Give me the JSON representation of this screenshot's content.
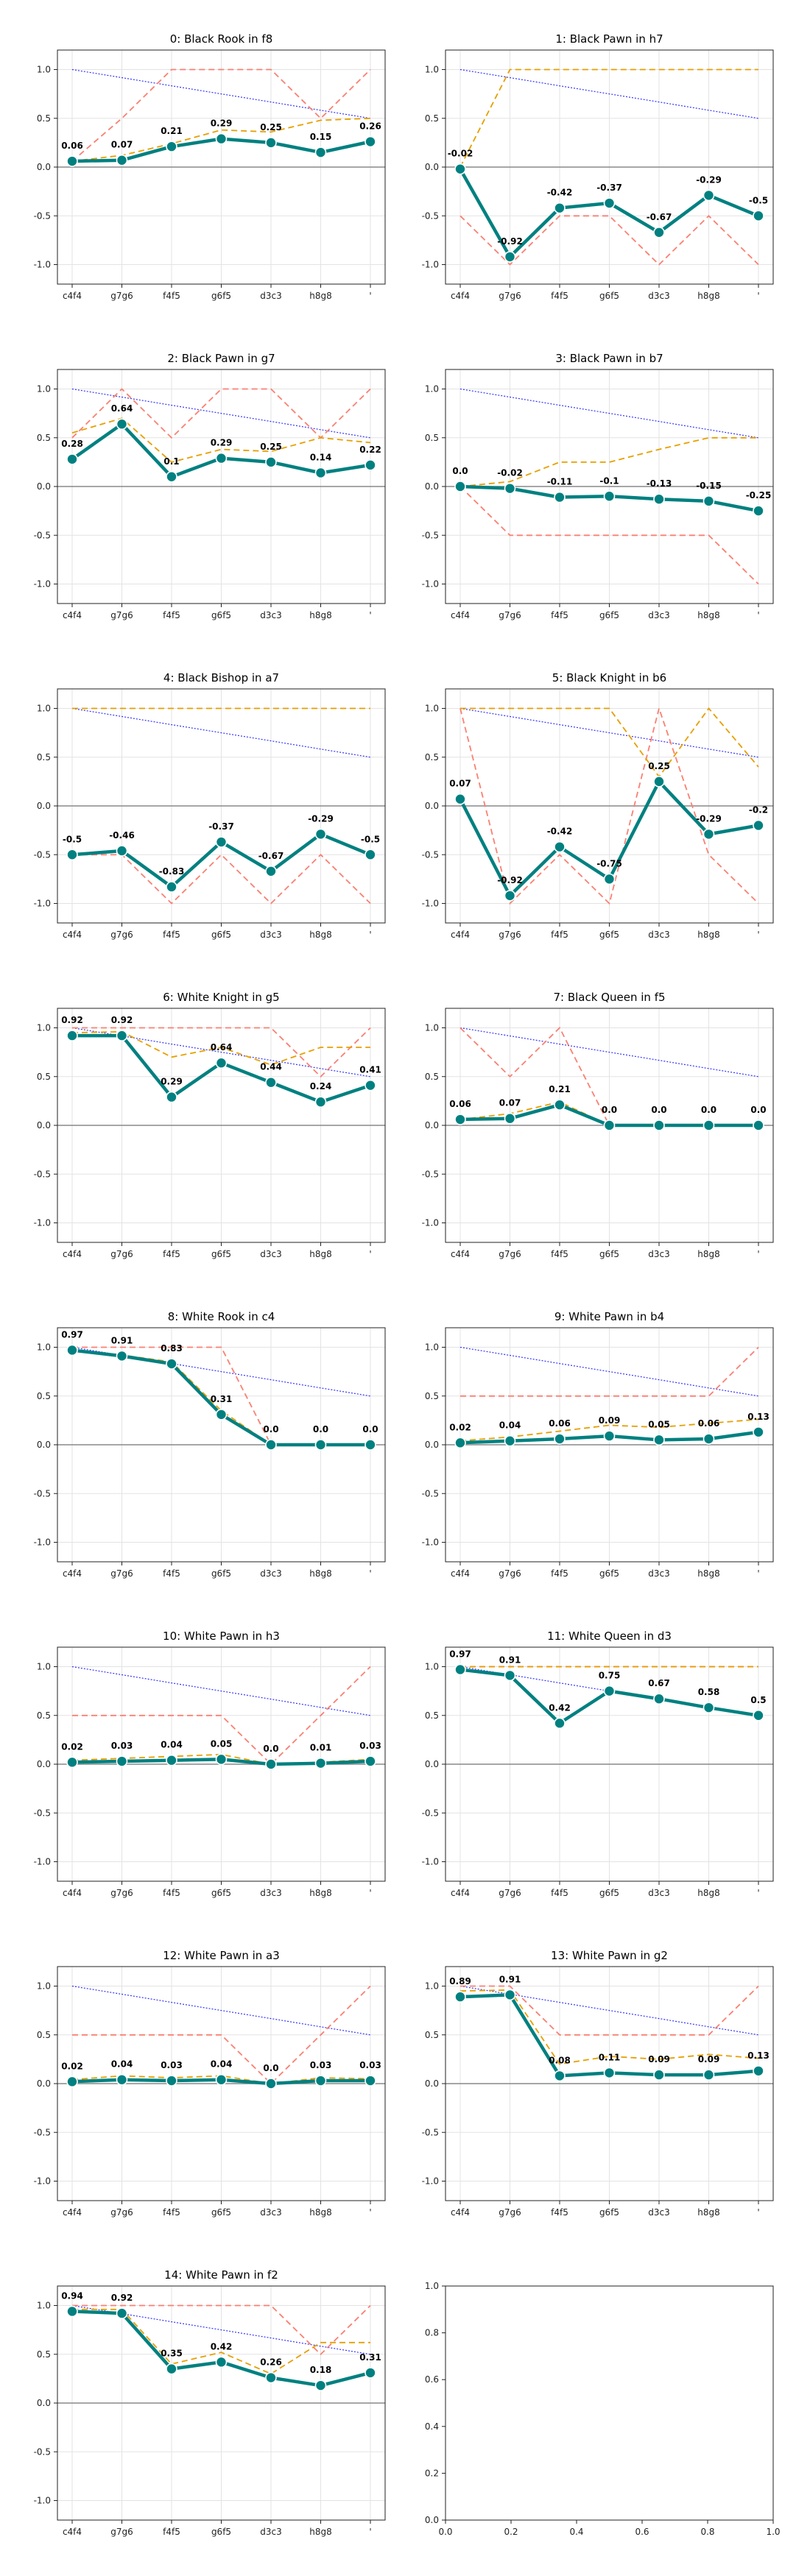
{
  "colors": {
    "main": "#008080",
    "orange": "#e69f00",
    "red": "#fa8072",
    "blue": "#0000ff",
    "zero": "#888888",
    "grid": "#e3e3e3",
    "axis": "#222222"
  },
  "x_ticks": [
    "c4f4",
    "g7g6",
    "f4f5",
    "g6f5",
    "d3c3",
    "h8g8",
    "'"
  ],
  "y_ticks": [
    "-1.0",
    "-0.5",
    "0.0",
    "0.5",
    "1.0"
  ],
  "empty_axes": {
    "x_ticks": [
      "0.0",
      "0.2",
      "0.4",
      "0.6",
      "0.8",
      "1.0"
    ],
    "y_ticks": [
      "0.0",
      "0.2",
      "0.4",
      "0.6",
      "0.8",
      "1.0"
    ]
  },
  "chart_data": [
    {
      "type": "line",
      "title": "0: Black Rook in f8",
      "ylim": [
        -1.2,
        1.2
      ],
      "main": [
        0.06,
        0.07,
        0.21,
        0.29,
        0.25,
        0.15,
        0.26
      ],
      "labels": [
        "0.06",
        "0.07",
        "0.21",
        "0.29",
        "0.25",
        "0.15",
        "0.26"
      ],
      "orange": [
        0.06,
        0.12,
        0.24,
        0.38,
        0.36,
        0.48,
        0.5
      ],
      "red": [
        0.06,
        0.5,
        1.0,
        1.0,
        1.0,
        0.5,
        1.0
      ],
      "blue": [
        1.0,
        0.917,
        0.833,
        0.75,
        0.667,
        0.583,
        0.5
      ]
    },
    {
      "type": "line",
      "title": "1: Black Pawn in h7",
      "ylim": [
        -1.2,
        1.2
      ],
      "main": [
        -0.02,
        -0.92,
        -0.42,
        -0.37,
        -0.67,
        -0.29,
        -0.5
      ],
      "labels": [
        "-0.02",
        "-0.92",
        "-0.42",
        "-0.37",
        "-0.67",
        "-0.29",
        "-0.5"
      ],
      "orange": [
        0.0,
        1.0,
        1.0,
        1.0,
        1.0,
        1.0,
        1.0
      ],
      "red": [
        -0.5,
        -1.0,
        -0.5,
        -0.5,
        -1.0,
        -0.5,
        -1.0
      ],
      "blue": [
        1.0,
        0.917,
        0.833,
        0.75,
        0.667,
        0.583,
        0.5
      ]
    },
    {
      "type": "line",
      "title": "2: Black Pawn in g7",
      "ylim": [
        -1.2,
        1.2
      ],
      "main": [
        0.28,
        0.64,
        0.1,
        0.29,
        0.25,
        0.14,
        0.22
      ],
      "labels": [
        "0.28",
        "0.64",
        "0.1",
        "0.29",
        "0.25",
        "0.14",
        "0.22"
      ],
      "orange": [
        0.55,
        0.7,
        0.25,
        0.38,
        0.36,
        0.5,
        0.45
      ],
      "red": [
        0.5,
        1.0,
        0.5,
        1.0,
        1.0,
        0.5,
        1.0
      ],
      "blue": [
        1.0,
        0.917,
        0.833,
        0.75,
        0.667,
        0.583,
        0.5
      ]
    },
    {
      "type": "line",
      "title": "3: Black Pawn in b7",
      "ylim": [
        -1.2,
        1.2
      ],
      "main": [
        0.0,
        -0.02,
        -0.11,
        -0.1,
        -0.13,
        -0.15,
        -0.25
      ],
      "labels": [
        "0.0",
        "-0.02",
        "-0.11",
        "-0.1",
        "-0.13",
        "-0.15",
        "-0.25"
      ],
      "orange": [
        0.0,
        0.05,
        0.25,
        0.25,
        0.38,
        0.5,
        0.5
      ],
      "red": [
        0.0,
        -0.5,
        -0.5,
        -0.5,
        -0.5,
        -0.5,
        -1.0
      ],
      "blue": [
        1.0,
        0.917,
        0.833,
        0.75,
        0.667,
        0.583,
        0.5
      ]
    },
    {
      "type": "line",
      "title": "4: Black Bishop in a7",
      "ylim": [
        -1.2,
        1.2
      ],
      "main": [
        -0.5,
        -0.46,
        -0.83,
        -0.37,
        -0.67,
        -0.29,
        -0.5
      ],
      "labels": [
        "-0.5",
        "-0.46",
        "-0.83",
        "-0.37",
        "-0.67",
        "-0.29",
        "-0.5"
      ],
      "orange": [
        1.0,
        1.0,
        1.0,
        1.0,
        1.0,
        1.0,
        1.0
      ],
      "red": [
        -0.5,
        -0.5,
        -1.0,
        -0.5,
        -1.0,
        -0.5,
        -1.0
      ],
      "blue": [
        1.0,
        0.917,
        0.833,
        0.75,
        0.667,
        0.583,
        0.5
      ]
    },
    {
      "type": "line",
      "title": "5: Black Knight in b6",
      "ylim": [
        -1.2,
        1.2
      ],
      "main": [
        0.07,
        -0.92,
        -0.42,
        -0.75,
        0.25,
        -0.29,
        -0.2
      ],
      "labels": [
        "0.07",
        "-0.92",
        "-0.42",
        "-0.75",
        "0.25",
        "-0.29",
        "-0.2"
      ],
      "orange": [
        1.0,
        1.0,
        1.0,
        1.0,
        0.3,
        1.0,
        0.4
      ],
      "red": [
        1.0,
        -1.0,
        -0.5,
        -1.0,
        1.0,
        -0.5,
        -1.0
      ],
      "blue": [
        1.0,
        0.917,
        0.833,
        0.75,
        0.667,
        0.583,
        0.5
      ]
    },
    {
      "type": "line",
      "title": "6: White Knight in g5",
      "ylim": [
        -1.2,
        1.2
      ],
      "main": [
        0.92,
        0.92,
        0.29,
        0.64,
        0.44,
        0.24,
        0.41
      ],
      "labels": [
        "0.92",
        "0.92",
        "0.29",
        "0.64",
        "0.44",
        "0.24",
        "0.41"
      ],
      "orange": [
        0.95,
        0.96,
        0.7,
        0.8,
        0.62,
        0.8,
        0.8
      ],
      "red": [
        1.0,
        1.0,
        1.0,
        1.0,
        1.0,
        0.5,
        1.0
      ],
      "blue": [
        1.0,
        0.917,
        0.833,
        0.75,
        0.667,
        0.583,
        0.5
      ]
    },
    {
      "type": "line",
      "title": "7: Black Queen in f5",
      "ylim": [
        -1.2,
        1.2
      ],
      "main": [
        0.06,
        0.07,
        0.21,
        0.0,
        0.0,
        0.0,
        0.0
      ],
      "labels": [
        "0.06",
        "0.07",
        "0.21",
        "0.0",
        "0.0",
        "0.0",
        "0.0"
      ],
      "orange": [
        0.06,
        0.12,
        0.24,
        0.0,
        0.0,
        0.0,
        0.0
      ],
      "red": [
        1.0,
        0.5,
        1.0,
        0.0,
        0.0,
        0.0,
        0.0
      ],
      "blue": [
        1.0,
        0.917,
        0.833,
        0.75,
        0.667,
        0.583,
        0.5
      ]
    },
    {
      "type": "line",
      "title": "8: White Rook in c4",
      "ylim": [
        -1.2,
        1.2
      ],
      "main": [
        0.97,
        0.91,
        0.83,
        0.31,
        0.0,
        0.0,
        0.0
      ],
      "labels": [
        "0.97",
        "0.91",
        "0.83",
        "0.31",
        "0.0",
        "0.0",
        "0.0"
      ],
      "orange": [
        0.97,
        0.92,
        0.85,
        0.35,
        0.0,
        0.0,
        0.0
      ],
      "red": [
        1.0,
        1.0,
        1.0,
        1.0,
        0.0,
        0.0,
        0.0
      ],
      "blue": [
        1.0,
        0.917,
        0.833,
        0.75,
        0.667,
        0.583,
        0.5
      ]
    },
    {
      "type": "line",
      "title": "9: White Pawn in b4",
      "ylim": [
        -1.2,
        1.2
      ],
      "main": [
        0.02,
        0.04,
        0.06,
        0.09,
        0.05,
        0.06,
        0.13
      ],
      "labels": [
        "0.02",
        "0.04",
        "0.06",
        "0.09",
        "0.05",
        "0.06",
        "0.13"
      ],
      "orange": [
        0.04,
        0.08,
        0.14,
        0.2,
        0.18,
        0.22,
        0.26
      ],
      "red": [
        0.5,
        0.5,
        0.5,
        0.5,
        0.5,
        0.5,
        1.0
      ],
      "blue": [
        1.0,
        0.917,
        0.833,
        0.75,
        0.667,
        0.583,
        0.5
      ]
    },
    {
      "type": "line",
      "title": "10: White Pawn in h3",
      "ylim": [
        -1.2,
        1.2
      ],
      "main": [
        0.02,
        0.03,
        0.04,
        0.05,
        0.0,
        0.01,
        0.03
      ],
      "labels": [
        "0.02",
        "0.03",
        "0.04",
        "0.05",
        "0.0",
        "0.01",
        "0.03"
      ],
      "orange": [
        0.04,
        0.06,
        0.08,
        0.1,
        0.0,
        0.02,
        0.05
      ],
      "red": [
        0.5,
        0.5,
        0.5,
        0.5,
        0.0,
        0.5,
        1.0
      ],
      "blue": [
        1.0,
        0.917,
        0.833,
        0.75,
        0.667,
        0.583,
        0.5
      ]
    },
    {
      "type": "line",
      "title": "11: White Queen in d3",
      "ylim": [
        -1.2,
        1.2
      ],
      "main": [
        0.97,
        0.91,
        0.42,
        0.75,
        0.67,
        0.58,
        0.5
      ],
      "labels": [
        "0.97",
        "0.91",
        "0.42",
        "0.75",
        "0.67",
        "0.58",
        "0.5"
      ],
      "orange": [
        1.0,
        1.0,
        1.0,
        1.0,
        1.0,
        1.0,
        1.0
      ],
      "red": [
        1.0,
        1.0,
        1.0,
        1.0,
        1.0,
        1.0,
        1.0
      ],
      "blue": [
        1.0,
        0.917,
        0.833,
        0.75,
        0.667,
        0.583,
        0.5
      ]
    },
    {
      "type": "line",
      "title": "12: White Pawn in a3",
      "ylim": [
        -1.2,
        1.2
      ],
      "main": [
        0.02,
        0.04,
        0.03,
        0.04,
        0.0,
        0.03,
        0.03
      ],
      "labels": [
        "0.02",
        "0.04",
        "0.03",
        "0.04",
        "0.0",
        "0.03",
        "0.03"
      ],
      "orange": [
        0.04,
        0.08,
        0.06,
        0.08,
        0.0,
        0.06,
        0.05
      ],
      "red": [
        0.5,
        0.5,
        0.5,
        0.5,
        0.0,
        0.5,
        1.0
      ],
      "blue": [
        1.0,
        0.917,
        0.833,
        0.75,
        0.667,
        0.583,
        0.5
      ]
    },
    {
      "type": "line",
      "title": "13: White Pawn in g2",
      "ylim": [
        -1.2,
        1.2
      ],
      "main": [
        0.89,
        0.91,
        0.08,
        0.11,
        0.09,
        0.09,
        0.13
      ],
      "labels": [
        "0.89",
        "0.91",
        "0.08",
        "0.11",
        "0.09",
        "0.09",
        "0.13"
      ],
      "orange": [
        0.95,
        0.96,
        0.2,
        0.28,
        0.25,
        0.3,
        0.26
      ],
      "red": [
        1.0,
        1.0,
        0.5,
        0.5,
        0.5,
        0.5,
        1.0
      ],
      "blue": [
        1.0,
        0.917,
        0.833,
        0.75,
        0.667,
        0.583,
        0.5
      ]
    },
    {
      "type": "line",
      "title": "14: White Pawn in f2",
      "ylim": [
        -1.2,
        1.2
      ],
      "main": [
        0.94,
        0.92,
        0.35,
        0.42,
        0.26,
        0.18,
        0.31
      ],
      "labels": [
        "0.94",
        "0.92",
        "0.35",
        "0.42",
        "0.26",
        "0.18",
        "0.31"
      ],
      "orange": [
        0.96,
        0.96,
        0.4,
        0.52,
        0.3,
        0.62,
        0.62
      ],
      "red": [
        1.0,
        1.0,
        1.0,
        1.0,
        1.0,
        0.5,
        1.0
      ],
      "blue": [
        1.0,
        0.917,
        0.833,
        0.75,
        0.667,
        0.583,
        0.5
      ]
    }
  ]
}
